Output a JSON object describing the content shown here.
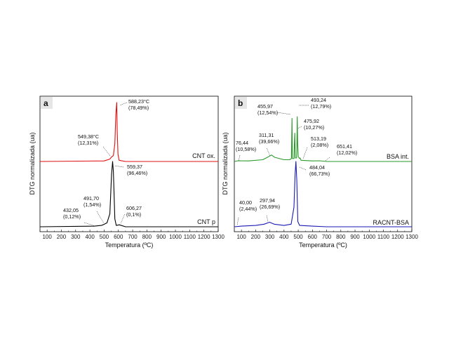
{
  "chart_data": [
    {
      "type": "line",
      "panel_label": "a",
      "xlabel": "Temperatura (ºC)",
      "ylabel": "DTG normalizada (ua)",
      "xlim": [
        50,
        1300
      ],
      "x_ticks": [
        100,
        200,
        300,
        400,
        500,
        600,
        700,
        800,
        900,
        1000,
        1100,
        1200,
        1300
      ],
      "series": [
        {
          "name": "CNT ox.",
          "color": "#e01010",
          "points": [
            [
              50,
              0
            ],
            [
              500,
              0.01
            ],
            [
              540,
              0.04
            ],
            [
              549.38,
              0.07
            ],
            [
              565,
              0.1
            ],
            [
              575,
              0.3
            ],
            [
              582,
              0.8
            ],
            [
              588.23,
              1.0
            ],
            [
              592,
              0.5
            ],
            [
              597,
              0.12
            ],
            [
              605,
              0.02
            ],
            [
              650,
              0
            ],
            [
              1300,
              0
            ]
          ]
        },
        {
          "name": "CNT p",
          "color": "#000000",
          "points": [
            [
              50,
              0
            ],
            [
              432.05,
              0.01
            ],
            [
              480,
              0.02
            ],
            [
              491.7,
              0.03
            ],
            [
              520,
              0.06
            ],
            [
              540,
              0.2
            ],
            [
              552,
              0.8
            ],
            [
              559.37,
              1.0
            ],
            [
              565,
              0.85
            ],
            [
              575,
              0.12
            ],
            [
              585,
              0.02
            ],
            [
              606.27,
              0.03
            ],
            [
              650,
              0
            ],
            [
              1300,
              0
            ]
          ]
        }
      ],
      "annotations": [
        {
          "series": "CNT ox.",
          "x": 588.23,
          "label": "588,23°C",
          "sub": "(78,49%)"
        },
        {
          "series": "CNT ox.",
          "x": 549.38,
          "label": "549,38°C",
          "sub": "(12,31%)"
        },
        {
          "series": "CNT p",
          "x": 559.37,
          "label": "559,37",
          "sub": "(96,46%)"
        },
        {
          "series": "CNT p",
          "x": 432.05,
          "label": "432,05",
          "sub": "(0,12%)"
        },
        {
          "series": "CNT p",
          "x": 491.7,
          "label": "491,70",
          "sub": "(1,54%)"
        },
        {
          "series": "CNT p",
          "x": 606.27,
          "label": "606,27",
          "sub": "(0,1%)"
        }
      ]
    },
    {
      "type": "line",
      "panel_label": "b",
      "xlabel": "Temperatura (ºC)",
      "ylabel": "DTG normalizada (ua)",
      "xlim": [
        50,
        1300
      ],
      "x_ticks": [
        100,
        200,
        300,
        400,
        500,
        600,
        700,
        800,
        900,
        1000,
        1100,
        1200,
        1300
      ],
      "series": [
        {
          "name": "BSA int.",
          "color": "#2a9a2a",
          "points": [
            [
              50,
              0
            ],
            [
              76.44,
              0.012
            ],
            [
              150,
              0.01
            ],
            [
              250,
              0.03
            ],
            [
              290,
              0.08
            ],
            [
              311.31,
              0.11
            ],
            [
              335,
              0.07
            ],
            [
              400,
              0.03
            ],
            [
              440,
              0.03
            ],
            [
              452,
              0.05
            ],
            [
              455.97,
              0.73
            ],
            [
              459,
              0.05
            ],
            [
              470,
              0.05
            ],
            [
              473,
              0.3
            ],
            [
              475.92,
              0.48
            ],
            [
              479,
              0.06
            ],
            [
              488,
              0.06
            ],
            [
              490,
              0.2
            ],
            [
              493.24,
              0.76
            ],
            [
              496,
              0.3
            ],
            [
              500,
              0.08
            ],
            [
              510,
              0.05
            ],
            [
              513.19,
              0.06
            ],
            [
              520,
              0.02
            ],
            [
              600,
              0.01
            ],
            [
              651.41,
              0.012
            ],
            [
              700,
              0
            ],
            [
              1300,
              0
            ]
          ]
        },
        {
          "name": "RACNT-BSA",
          "color": "#1a1ab4",
          "points": [
            [
              50,
              0
            ],
            [
              100,
              0.01
            ],
            [
              200,
              0.02
            ],
            [
              260,
              0.04
            ],
            [
              297.94,
              0.07
            ],
            [
              330,
              0.04
            ],
            [
              400,
              0.02
            ],
            [
              450,
              0.04
            ],
            [
              470,
              0.3
            ],
            [
              478,
              0.8
            ],
            [
              484.04,
              1.0
            ],
            [
              490,
              0.7
            ],
            [
              497,
              0.08
            ],
            [
              510,
              0.02
            ],
            [
              600,
              0.01
            ],
            [
              700,
              0
            ],
            [
              1300,
              0
            ]
          ]
        }
      ],
      "annotations": [
        {
          "series": "BSA int.",
          "x": 493.24,
          "label": "493,24",
          "sub": "(12,79%)"
        },
        {
          "series": "BSA int.",
          "x": 455.97,
          "label": "455,97",
          "sub": "(12,54%)"
        },
        {
          "series": "BSA int.",
          "x": 475.92,
          "label": "475,92",
          "sub": "(10,27%)"
        },
        {
          "series": "BSA int.",
          "x": 311.31,
          "label": "311,31",
          "sub": "(39,66%)"
        },
        {
          "series": "BSA int.",
          "x": 76.44,
          "label": "76,44",
          "sub": "(10,58%)"
        },
        {
          "series": "BSA int.",
          "x": 513.19,
          "label": "513,19",
          "sub": "(2,08%)"
        },
        {
          "series": "BSA int.",
          "x": 651.41,
          "label": "651,41",
          "sub": "(12,02%)"
        },
        {
          "series": "RACNT-BSA",
          "x": 484.04,
          "label": "484,04",
          "sub": "(66,73%)"
        },
        {
          "series": "RACNT-BSA",
          "x": 40.0,
          "label": "40,00",
          "sub": "(2,44%)"
        },
        {
          "series": "RACNT-BSA",
          "x": 297.94,
          "label": "297,94",
          "sub": "(26,69%)"
        }
      ]
    }
  ]
}
